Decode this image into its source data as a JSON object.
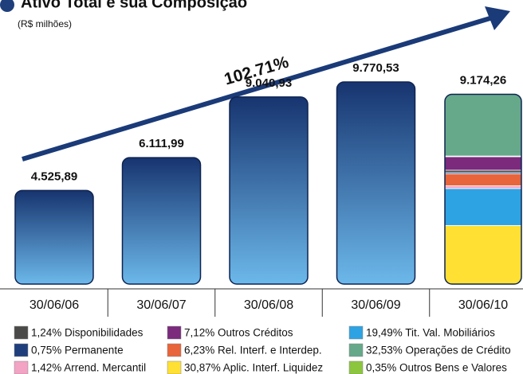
{
  "chart_data": {
    "type": "bar",
    "title": "Ativo Total e sua Composição",
    "subtitle": "(R$ milhões)",
    "annotation": "102.71%",
    "categories": [
      "30/06/06",
      "30/06/07",
      "30/06/08",
      "30/06/09",
      "30/06/10"
    ],
    "values": [
      4525.89,
      6111.99,
      9040.93,
      9770.53,
      9174.26
    ],
    "value_labels": [
      "4.525,89",
      "6.111,99",
      "9.040,93",
      "9.770,53",
      "9.174,26"
    ],
    "colors": [
      "#17346f",
      "#6cb8ea"
    ],
    "ylim": [
      0,
      10000
    ],
    "composition": {
      "labels": [
        "1,24% Disponibilidades",
        "0,75% Permanente",
        "1,42% Arrend. Mercantil",
        "7,12% Outros Créditos",
        "6,23% Rel. Interf. e Interdep.",
        "30,87% Aplic. Interf. Liquidez",
        "19,49% Tit. Val. Mobiliários",
        "32,53% Operações de Crédito",
        "0,35% Outros Bens e Valores"
      ],
      "values": [
        1.24,
        0.75,
        1.42,
        7.12,
        6.23,
        30.87,
        19.49,
        32.53,
        0.35
      ],
      "colors": [
        "#4a4a48",
        "#1f3f7c",
        "#f3a3c4",
        "#7b2a7c",
        "#e8643a",
        "#ffe033",
        "#2ea3e3",
        "#66a98a",
        "#8cc63e"
      ]
    }
  }
}
